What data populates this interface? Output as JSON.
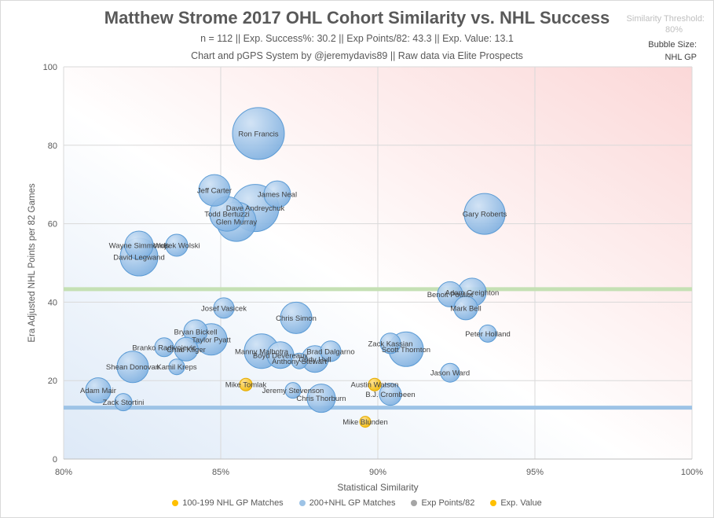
{
  "header": {
    "title": "Matthew Strome 2017 OHL Cohort Similarity vs. NHL Success",
    "stats_line": "n = 112 || Exp. Success%: 30.2 || Exp Points/82: 43.3 || Exp. Value: 13.1",
    "credit_line": "Chart and pGPS System by @jeremydavis89 || Raw data via Elite Prospects"
  },
  "side_notes": {
    "threshold_label": "Similarity Threshold:",
    "threshold_value": "80%",
    "bubble_label": "Bubble Size:",
    "bubble_value": "NHL GP"
  },
  "colors": {
    "blue_fill": "#9dc3e6",
    "blue_stroke": "#5b9bd5",
    "gold": "#ffc000",
    "gray": "#a5a5a5",
    "green_line": "#c5e0b4",
    "blue_line": "#9dc3e6",
    "grid": "#d9d9d9"
  },
  "chart_data": {
    "type": "scatter",
    "xlabel": "Statistical Similarity",
    "ylabel": "Era Adjusted NHL Points per 82 Games",
    "xlim": [
      0.8,
      1.0
    ],
    "ylim": [
      0,
      100
    ],
    "x_ticks": [
      {
        "v": 0.8,
        "label": "80%"
      },
      {
        "v": 0.85,
        "label": "85%"
      },
      {
        "v": 0.9,
        "label": "90%"
      },
      {
        "v": 0.95,
        "label": "95%"
      },
      {
        "v": 1.0,
        "label": "100%"
      }
    ],
    "y_ticks": [
      0,
      20,
      40,
      60,
      80,
      100
    ],
    "grid": true,
    "legend_position": "bottom",
    "exp_points_82": 43.3,
    "exp_value": 13.1,
    "legend": [
      {
        "key": "mid",
        "label": "100-199 NHL GP Matches"
      },
      {
        "key": "big",
        "label": "200+NHL GP Matches"
      },
      {
        "key": "exp_pts",
        "label": "Exp Points/82"
      },
      {
        "key": "exp_val",
        "label": "Exp. Value"
      }
    ],
    "series": [
      {
        "name": "100-199 NHL GP Matches",
        "key": "mid",
        "points": [
          {
            "label": "Mike Tomlak",
            "x": 0.858,
            "y": 19,
            "r": 8
          },
          {
            "label": "Austin Watson",
            "x": 0.899,
            "y": 19,
            "r": 8
          },
          {
            "label": "Mike Blunden",
            "x": 0.896,
            "y": 9.5,
            "r": 7
          }
        ]
      },
      {
        "name": "200+NHL GP Matches",
        "key": "big",
        "points": [
          {
            "label": "Ron Francis",
            "x": 0.862,
            "y": 83,
            "r": 33
          },
          {
            "label": "Jeff Carter",
            "x": 0.848,
            "y": 68.5,
            "r": 20
          },
          {
            "label": "James Neal",
            "x": 0.868,
            "y": 67.5,
            "r": 17
          },
          {
            "label": "Dave Andreychuk",
            "x": 0.861,
            "y": 64,
            "r": 30
          },
          {
            "label": "Todd Bertuzzi",
            "x": 0.852,
            "y": 62.5,
            "r": 22
          },
          {
            "label": "Glen Murray",
            "x": 0.855,
            "y": 60.5,
            "r": 25
          },
          {
            "label": "Gary Roberts",
            "x": 0.934,
            "y": 62.5,
            "r": 26
          },
          {
            "label": "Wayne Simmonds",
            "x": 0.824,
            "y": 54.5,
            "r": 18
          },
          {
            "label": "Wojtek Wolski",
            "x": 0.836,
            "y": 54.5,
            "r": 14
          },
          {
            "label": "David Legwand",
            "x": 0.824,
            "y": 51.5,
            "r": 24
          },
          {
            "label": "Benoit Pouliot",
            "x": 0.923,
            "y": 42,
            "r": 16
          },
          {
            "label": "Adam Creighton",
            "x": 0.93,
            "y": 42.5,
            "r": 18
          },
          {
            "label": "Mark Bell",
            "x": 0.928,
            "y": 38.5,
            "r": 15
          },
          {
            "label": "Josef Vasicek",
            "x": 0.851,
            "y": 38.5,
            "r": 13
          },
          {
            "label": "Chris Simon",
            "x": 0.874,
            "y": 36,
            "r": 20
          },
          {
            "label": "Peter Holland",
            "x": 0.935,
            "y": 32,
            "r": 11
          },
          {
            "label": "Bryan Bickell",
            "x": 0.842,
            "y": 32.5,
            "r": 15
          },
          {
            "label": "Taylor Pyatt",
            "x": 0.847,
            "y": 30.5,
            "r": 20
          },
          {
            "label": "Branko Radivojevic",
            "x": 0.832,
            "y": 28.5,
            "r": 12
          },
          {
            "label": "Chad Kilger",
            "x": 0.839,
            "y": 28,
            "r": 15
          },
          {
            "label": "Manny Malhotra",
            "x": 0.863,
            "y": 27.5,
            "r": 22
          },
          {
            "label": "Boyd Devereaux",
            "x": 0.869,
            "y": 26.5,
            "r": 17
          },
          {
            "label": "Brad Dalgarno",
            "x": 0.885,
            "y": 27.5,
            "r": 13
          },
          {
            "label": "Cody Hull",
            "x": 0.88,
            "y": 25.5,
            "r": 17
          },
          {
            "label": "Anthony Stewart",
            "x": 0.875,
            "y": 25,
            "r": 10
          },
          {
            "label": "Zack Kassian",
            "x": 0.904,
            "y": 29.5,
            "r": 13
          },
          {
            "label": "Scott Thornton",
            "x": 0.909,
            "y": 28,
            "r": 22
          },
          {
            "label": "Shean Donovan",
            "x": 0.822,
            "y": 23.5,
            "r": 20
          },
          {
            "label": "Kamil Kreps",
            "x": 0.836,
            "y": 23.5,
            "r": 10
          },
          {
            "label": "Jason Ward",
            "x": 0.923,
            "y": 22,
            "r": 12
          },
          {
            "label": "Adam Mair",
            "x": 0.811,
            "y": 17.5,
            "r": 16
          },
          {
            "label": "Zack Stortini",
            "x": 0.819,
            "y": 14.5,
            "r": 11
          },
          {
            "label": "Jeremy Stevenson",
            "x": 0.873,
            "y": 17.5,
            "r": 10
          },
          {
            "label": "Chris Thorburn",
            "x": 0.882,
            "y": 15.5,
            "r": 18
          },
          {
            "label": "B.J. Crombeen",
            "x": 0.904,
            "y": 16.5,
            "r": 14
          }
        ]
      }
    ]
  }
}
